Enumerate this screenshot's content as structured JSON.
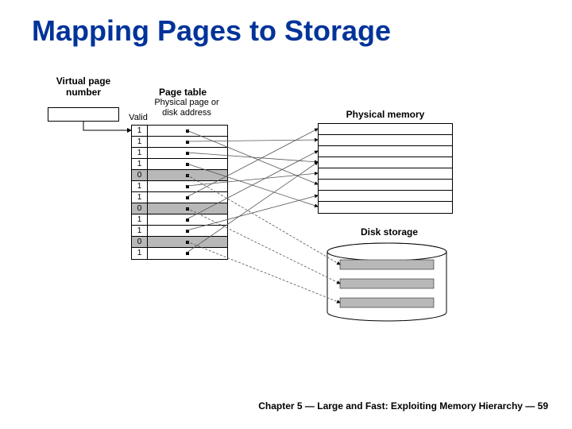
{
  "title": "Mapping Pages to Storage",
  "footer": "Chapter 5 — Large and Fast: Exploiting Memory Hierarchy — 59",
  "labels": {
    "vpn": "Virtual page\nnumber",
    "pageTable": "Page table",
    "valid": "Valid",
    "ptCol": "Physical page or\ndisk address",
    "physMem": "Physical memory",
    "disk": "Disk storage"
  },
  "pageTable": {
    "rows": [
      {
        "valid": "1",
        "shaded": false,
        "targetType": "mem",
        "targetIdx": 5
      },
      {
        "valid": "1",
        "shaded": false,
        "targetType": "mem",
        "targetIdx": 1
      },
      {
        "valid": "1",
        "shaded": false,
        "targetType": "mem",
        "targetIdx": 3
      },
      {
        "valid": "1",
        "shaded": false,
        "targetType": "mem",
        "targetIdx": 7
      },
      {
        "valid": "0",
        "shaded": true,
        "targetType": "disk",
        "targetIdx": 0
      },
      {
        "valid": "1",
        "shaded": false,
        "targetType": "mem",
        "targetIdx": 4
      },
      {
        "valid": "1",
        "shaded": false,
        "targetType": "mem",
        "targetIdx": 0
      },
      {
        "valid": "0",
        "shaded": true,
        "targetType": "disk",
        "targetIdx": 1
      },
      {
        "valid": "1",
        "shaded": false,
        "targetType": "mem",
        "targetIdx": 2
      },
      {
        "valid": "1",
        "shaded": false,
        "targetType": "mem",
        "targetIdx": 6
      },
      {
        "valid": "0",
        "shaded": true,
        "targetType": "disk",
        "targetIdx": 2
      },
      {
        "valid": "1",
        "shaded": false,
        "targetType": "mem",
        "targetIdx": 3
      }
    ]
  },
  "physMemRows": 8,
  "diskPlatters": 3,
  "colors": {
    "title": "#003399",
    "shaded": "#b8b8b8",
    "line": "#666666",
    "border": "#000000"
  },
  "layout": {
    "ptTop": 62,
    "ptLeft": 105,
    "ptRowH": 14,
    "ptValidW": 20,
    "ptAddrW": 100,
    "pmTop": 60,
    "pmLeft": 340,
    "pmW": 170,
    "pmRowH": 14,
    "diskTop": 210,
    "diskLeft": 350,
    "diskW": 155,
    "diskH": 100,
    "dotX": 48
  }
}
